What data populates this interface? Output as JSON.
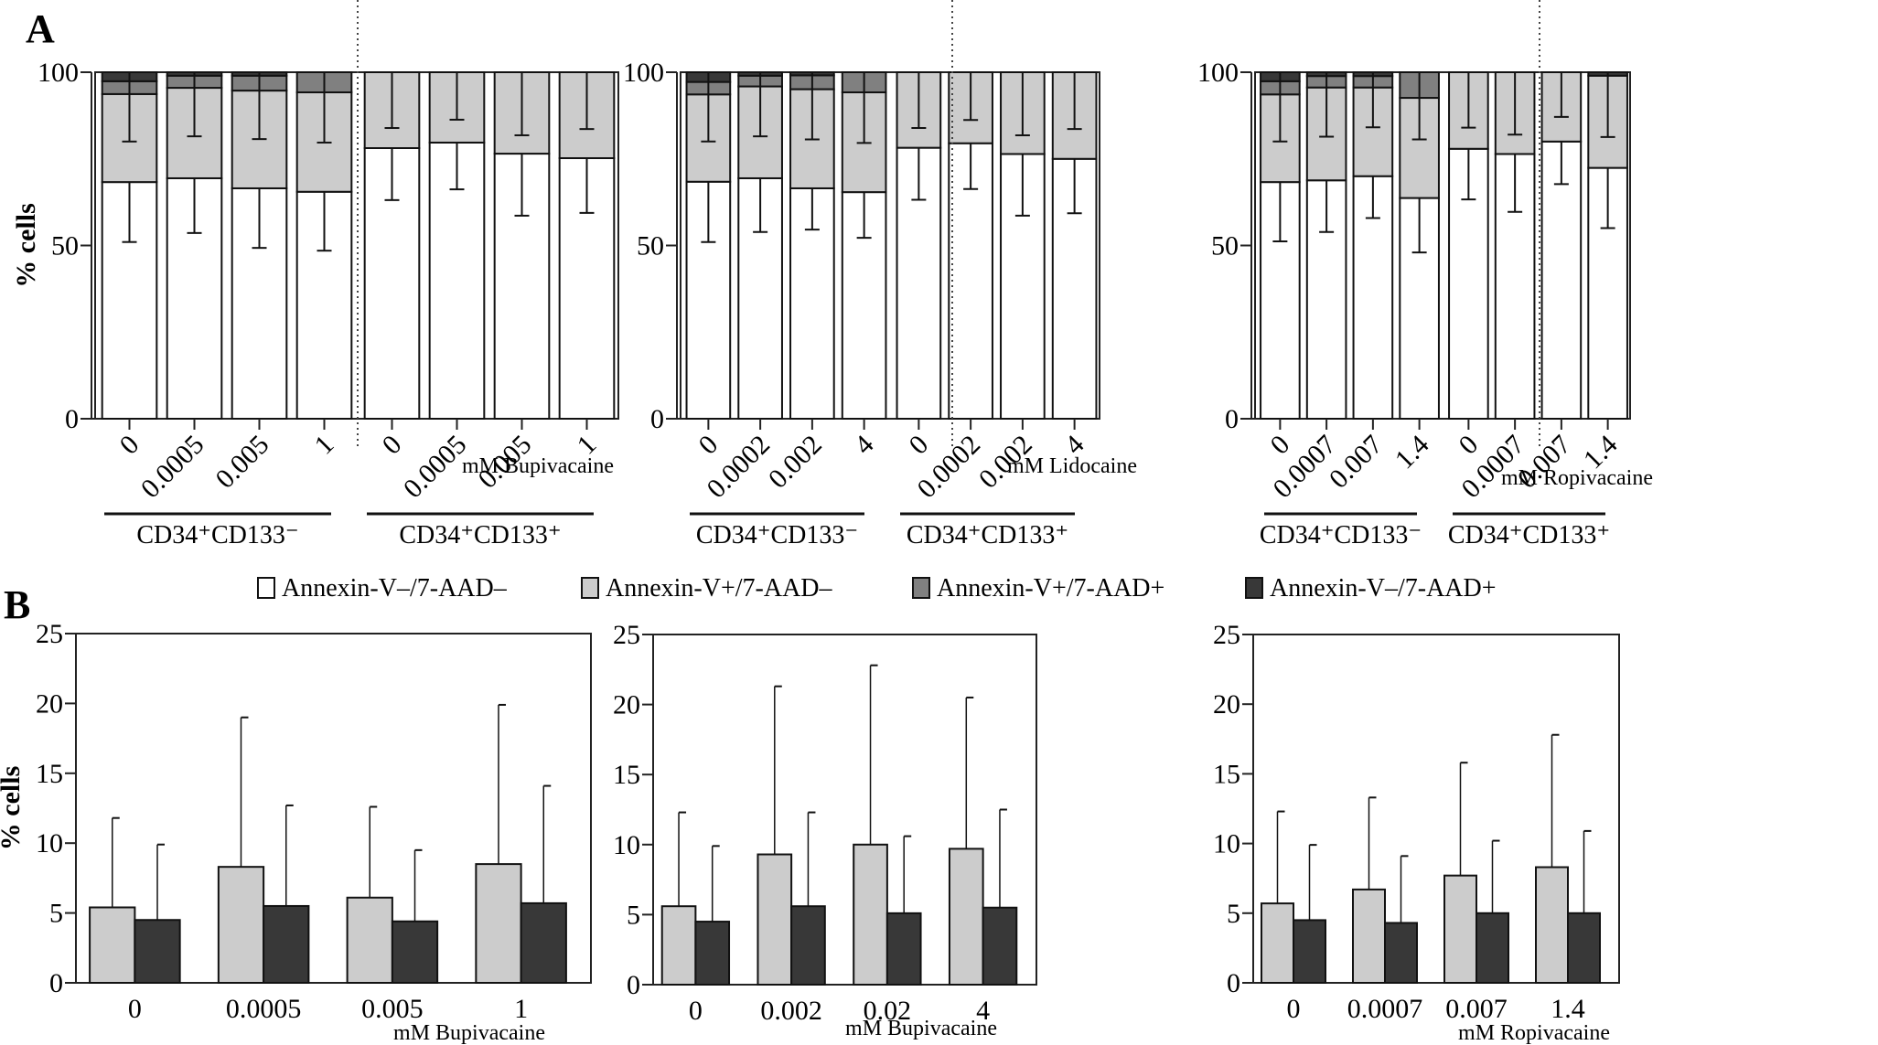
{
  "figure": {
    "panel_a_letter": "A",
    "panel_b_letter": "B"
  },
  "legend": {
    "items": [
      {
        "label": "Annexin-V–/7-AAD–",
        "color": "#ffffff"
      },
      {
        "label": "Annexin-V+/7-AAD–",
        "color": "#cccccc"
      },
      {
        "label": "Annexin-V+/7-AAD+",
        "color": "#808080"
      },
      {
        "label": "Annexin-V–/7-AAD+",
        "color": "#383838"
      }
    ]
  },
  "chart_data": [
    {
      "id": "A-bupivacaine",
      "type": "bar",
      "stacked": true,
      "panel": "A",
      "ylabel": "% cells",
      "ylim": [
        0,
        100
      ],
      "yticks": [
        "0",
        "50",
        "100"
      ],
      "unit_label": "mM Bupivacaine",
      "groups": [
        {
          "label": "CD34⁺CD133⁻",
          "categories": [
            "0",
            "0.0005",
            "0.005",
            "1"
          ]
        },
        {
          "label": "CD34⁺CD133⁺",
          "categories": [
            "0",
            "0.0005",
            "0.005",
            "1"
          ]
        }
      ],
      "series": [
        {
          "name": "Annexin-V–/7-AAD–",
          "values": [
            68.3,
            69.4,
            66.5,
            65.5,
            78.1,
            79.7,
            76.5,
            75.2
          ],
          "error_low": [
            51.0,
            53.6,
            49.3,
            48.5,
            63.1,
            66.2,
            58.6,
            59.4
          ]
        },
        {
          "name": "Annexin-V+/7-AAD–",
          "values": [
            25.4,
            26.1,
            28.2,
            28.7,
            21.9,
            20.3,
            23.5,
            24.8
          ],
          "error_low": [
            80.0,
            81.5,
            80.7,
            79.7,
            83.9,
            86.3,
            81.8,
            83.6
          ]
        },
        {
          "name": "Annexin-V+/7-AAD+",
          "values": [
            3.7,
            3.5,
            4.3,
            5.8,
            0,
            0,
            0,
            0
          ]
        },
        {
          "name": "Annexin-V–/7-AAD+",
          "values": [
            2.6,
            1.0,
            1.0,
            0,
            0,
            0,
            0,
            0
          ]
        }
      ]
    },
    {
      "id": "A-lidocaine",
      "type": "bar",
      "stacked": true,
      "panel": "A",
      "ylabel": "",
      "ylim": [
        0,
        100
      ],
      "yticks": [
        "0",
        "50",
        "100"
      ],
      "unit_label": "mM Lidocaine",
      "groups": [
        {
          "label": "CD34⁺CD133⁻",
          "categories": [
            "0",
            "0.0002",
            "0.002",
            "4"
          ]
        },
        {
          "label": "CD34⁺CD133⁺",
          "categories": [
            "0",
            "0.0002",
            "0.002",
            "4"
          ]
        }
      ],
      "series": [
        {
          "name": "Annexin-V–/7-AAD–",
          "values": [
            68.4,
            69.4,
            66.5,
            65.4,
            78.2,
            79.5,
            76.4,
            75.0
          ],
          "error_low": [
            51.0,
            53.9,
            54.6,
            52.2,
            63.2,
            66.3,
            58.6,
            59.3
          ]
        },
        {
          "name": "Annexin-V+/7-AAD–",
          "values": [
            25.2,
            26.5,
            28.6,
            28.8,
            21.8,
            20.5,
            23.6,
            25.0
          ],
          "error_low": [
            80.0,
            81.5,
            80.6,
            79.6,
            83.9,
            86.2,
            81.8,
            83.6
          ]
        },
        {
          "name": "Annexin-V+/7-AAD+",
          "values": [
            3.6,
            3.1,
            4.0,
            5.8,
            0,
            0,
            0,
            0
          ]
        },
        {
          "name": "Annexin-V–/7-AAD+",
          "values": [
            2.8,
            1.0,
            0.9,
            0,
            0,
            0,
            0,
            0
          ]
        }
      ]
    },
    {
      "id": "A-ropivacaine",
      "type": "bar",
      "stacked": true,
      "panel": "A",
      "ylabel": "",
      "ylim": [
        0,
        100
      ],
      "yticks": [
        "0",
        "50",
        "100"
      ],
      "unit_label": "mM Ropivacaine",
      "groups": [
        {
          "label": "CD34⁺CD133⁻",
          "categories": [
            "0",
            "0.0007",
            "0.007",
            "1.4"
          ]
        },
        {
          "label": "CD34⁺CD133⁺",
          "categories": [
            "0",
            "0.0007",
            "0.007",
            "1.4"
          ]
        }
      ],
      "series": [
        {
          "name": "Annexin-V–/7-AAD–",
          "values": [
            68.3,
            68.8,
            70.0,
            63.7,
            77.9,
            76.4,
            80.0,
            72.4
          ],
          "error_low": [
            51.2,
            53.9,
            57.9,
            48.0,
            63.3,
            59.7,
            67.7,
            55.0
          ]
        },
        {
          "name": "Annexin-V+/7-AAD–",
          "values": [
            25.3,
            26.8,
            25.6,
            28.9,
            22.1,
            23.6,
            20.0,
            26.6
          ],
          "error_low": [
            80.0,
            81.4,
            84.1,
            80.6,
            84.0,
            82.0,
            87.1,
            81.3
          ]
        },
        {
          "name": "Annexin-V+/7-AAD+",
          "values": [
            3.8,
            3.3,
            3.3,
            7.4,
            0,
            0,
            0,
            0
          ]
        },
        {
          "name": "Annexin-V–/7-AAD+",
          "values": [
            2.6,
            1.1,
            1.1,
            0,
            0,
            0,
            0,
            1.0
          ]
        }
      ]
    },
    {
      "id": "B-bupivacaine-1",
      "type": "bar",
      "stacked": false,
      "panel": "B",
      "ylabel": "% cells",
      "ylim": [
        0,
        25
      ],
      "yticks": [
        "0",
        "5",
        "10",
        "15",
        "20",
        "25"
      ],
      "unit_label": "mM Bupivacaine",
      "categories": [
        "0",
        "0.0005",
        "0.005",
        "1"
      ],
      "series": [
        {
          "name": "Annexin-V+/7-AAD–",
          "values": [
            5.4,
            8.3,
            6.1,
            8.5
          ],
          "error_high": [
            11.8,
            19.0,
            12.6,
            19.9
          ]
        },
        {
          "name": "Annexin-V–/7-AAD+",
          "values": [
            4.5,
            5.5,
            4.4,
            5.7
          ],
          "error_high": [
            9.9,
            12.7,
            9.5,
            14.1
          ]
        }
      ]
    },
    {
      "id": "B-bupivacaine-2",
      "type": "bar",
      "stacked": false,
      "panel": "B",
      "ylabel": "",
      "ylim": [
        0,
        25
      ],
      "yticks": [
        "0",
        "5",
        "10",
        "15",
        "20",
        "25"
      ],
      "unit_label": "mM Bupivacaine",
      "categories": [
        "0",
        "0.002",
        "0.02",
        "4"
      ],
      "series": [
        {
          "name": "Annexin-V+/7-AAD–",
          "values": [
            5.6,
            9.3,
            10.0,
            9.7
          ],
          "error_high": [
            12.3,
            21.3,
            22.8,
            20.5
          ]
        },
        {
          "name": "Annexin-V–/7-AAD+",
          "values": [
            4.5,
            5.6,
            5.1,
            5.5
          ],
          "error_high": [
            9.9,
            12.3,
            10.6,
            12.5
          ]
        }
      ]
    },
    {
      "id": "B-ropivacaine",
      "type": "bar",
      "stacked": false,
      "panel": "B",
      "ylabel": "",
      "ylim": [
        0,
        25
      ],
      "yticks": [
        "0",
        "5",
        "10",
        "15",
        "20",
        "25"
      ],
      "unit_label": "mM Ropivacaine",
      "categories": [
        "0",
        "0.0007",
        "0.007",
        "1.4"
      ],
      "series": [
        {
          "name": "Annexin-V+/7-AAD–",
          "values": [
            5.7,
            6.7,
            7.7,
            8.3
          ],
          "error_high": [
            12.3,
            13.3,
            15.8,
            17.8
          ]
        },
        {
          "name": "Annexin-V–/7-AAD+",
          "values": [
            4.5,
            4.3,
            5.0,
            5.0
          ],
          "error_high": [
            9.9,
            9.1,
            10.2,
            10.9
          ]
        }
      ]
    }
  ]
}
